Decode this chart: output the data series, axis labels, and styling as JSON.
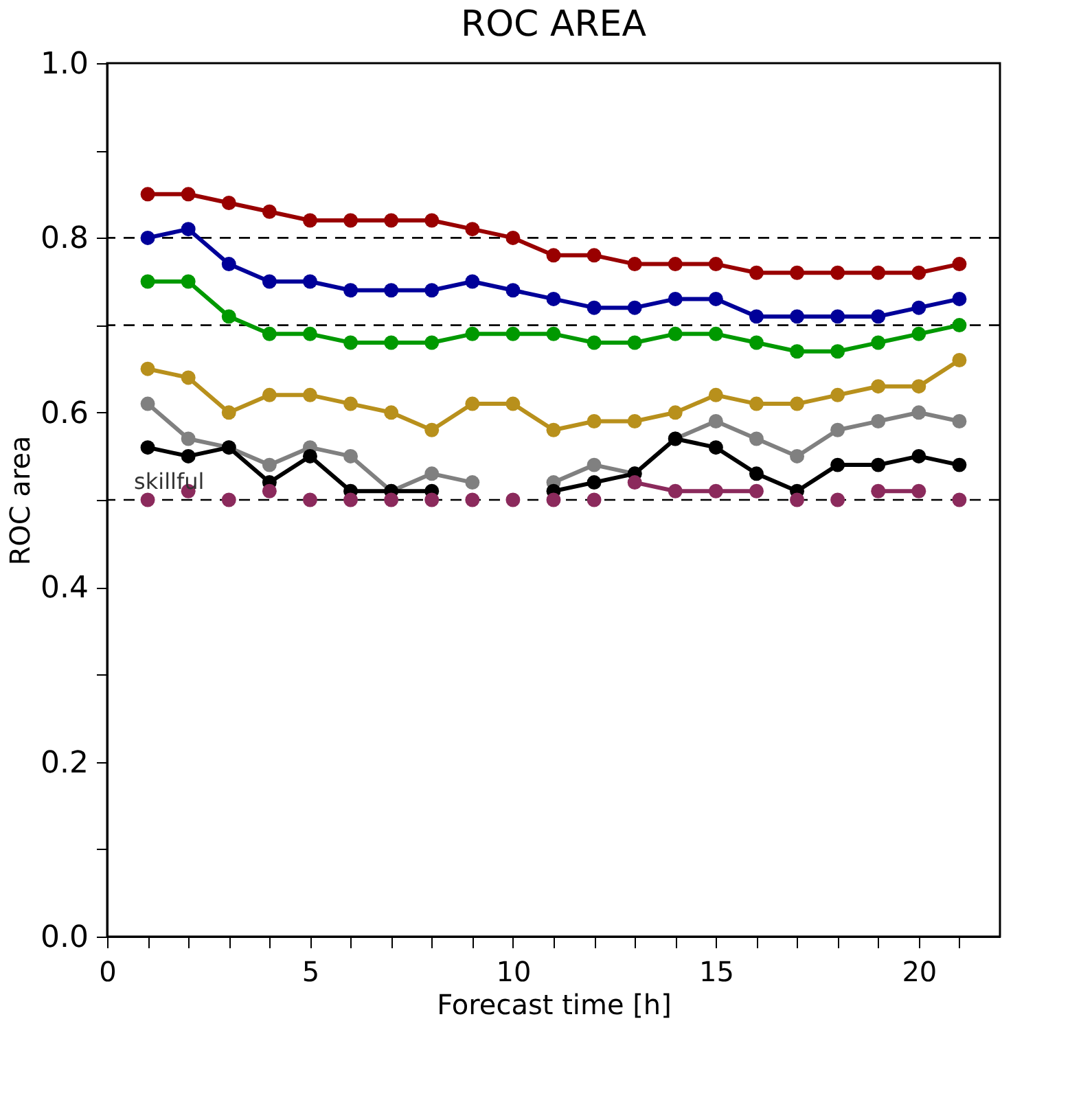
{
  "chart_data": {
    "type": "line",
    "title": "ROC AREA",
    "xlabel": "Forecast time [h]",
    "ylabel": "ROC area",
    "x": [
      1,
      2,
      3,
      4,
      5,
      6,
      7,
      8,
      9,
      10,
      11,
      12,
      13,
      14,
      15,
      16,
      17,
      18,
      19,
      20,
      21
    ],
    "series": [
      {
        "color": "#990000",
        "values": [
          0.85,
          0.85,
          0.84,
          0.83,
          0.82,
          0.82,
          0.82,
          0.82,
          0.81,
          0.8,
          0.78,
          0.78,
          0.77,
          0.77,
          0.77,
          0.76,
          0.76,
          0.76,
          0.76,
          0.76,
          0.77
        ]
      },
      {
        "color": "#000099",
        "values": [
          0.8,
          0.81,
          0.77,
          0.75,
          0.75,
          0.74,
          0.74,
          0.74,
          0.75,
          0.74,
          0.73,
          0.72,
          0.72,
          0.73,
          0.73,
          0.71,
          0.71,
          0.71,
          0.71,
          0.72,
          0.73
        ]
      },
      {
        "color": "#009900",
        "values": [
          0.75,
          0.75,
          0.71,
          0.69,
          0.69,
          0.68,
          0.68,
          0.68,
          0.69,
          0.69,
          0.69,
          0.68,
          0.68,
          0.69,
          0.69,
          0.68,
          0.67,
          0.67,
          0.68,
          0.69,
          0.7
        ]
      },
      {
        "color": "#b8901c",
        "values": [
          0.65,
          0.64,
          0.6,
          0.62,
          0.62,
          0.61,
          0.6,
          0.58,
          0.61,
          0.61,
          0.58,
          0.59,
          0.59,
          0.6,
          0.62,
          0.61,
          0.61,
          0.62,
          0.63,
          0.63,
          0.66
        ]
      },
      {
        "color": "#808080",
        "values": [
          0.61,
          0.57,
          0.56,
          0.54,
          0.56,
          0.55,
          0.51,
          0.53,
          0.52,
          null,
          0.52,
          0.54,
          0.53,
          0.57,
          0.59,
          0.57,
          0.55,
          0.58,
          0.59,
          0.6,
          0.59
        ]
      },
      {
        "color": "#000000",
        "values": [
          0.56,
          0.55,
          0.56,
          0.52,
          0.55,
          0.51,
          0.51,
          0.51,
          null,
          null,
          0.51,
          0.52,
          0.53,
          0.57,
          0.56,
          0.53,
          0.51,
          0.54,
          0.54,
          0.55,
          0.54
        ]
      },
      {
        "color": "#8b2a5c",
        "values": [
          null,
          null,
          null,
          null,
          null,
          null,
          null,
          null,
          null,
          null,
          null,
          null,
          0.52,
          0.51,
          0.51,
          0.51,
          null,
          null,
          0.51,
          0.51,
          null
        ]
      },
      {
        "type": "scatter",
        "color": "#8b2a5c",
        "values": [
          0.5,
          0.51,
          0.5,
          0.51,
          0.5,
          0.5,
          0.5,
          0.5,
          0.5,
          0.5,
          0.5,
          0.5,
          null,
          null,
          null,
          null,
          0.5,
          0.5,
          null,
          null,
          0.5
        ]
      }
    ],
    "xlim": [
      0,
      22
    ],
    "xticks": [
      0,
      {
        "value": 1,
        "label": null
      },
      {
        "value": 2,
        "label": null
      },
      {
        "value": 3,
        "label": null
      },
      {
        "value": 4,
        "label": null
      },
      5,
      {
        "value": 6,
        "label": null
      },
      {
        "value": 7,
        "label": null
      },
      {
        "value": 8,
        "label": null
      },
      {
        "value": 9,
        "label": null
      },
      10,
      {
        "value": 11,
        "label": null
      },
      {
        "value": 12,
        "label": null
      },
      {
        "value": 13,
        "label": null
      },
      {
        "value": 14,
        "label": null
      },
      15,
      {
        "value": 16,
        "label": null
      },
      {
        "value": 17,
        "label": null
      },
      {
        "value": 18,
        "label": null
      },
      {
        "value": 19,
        "label": null
      },
      20,
      {
        "value": 21,
        "label": null
      }
    ],
    "ylim": [
      0,
      1
    ],
    "yticks": [
      {
        "value": 0,
        "label": "0.0"
      },
      {
        "value": 0.1,
        "label": null
      },
      {
        "value": 0.2,
        "label": "0.2"
      },
      {
        "value": 0.3,
        "label": null
      },
      {
        "value": 0.4,
        "label": "0.4"
      },
      {
        "value": 0.5,
        "label": null
      },
      {
        "value": 0.6,
        "label": "0.6"
      },
      {
        "value": 0.7,
        "label": null
      },
      {
        "value": 0.8,
        "label": "0.8"
      },
      {
        "value": 0.9,
        "label": null
      },
      {
        "value": 1,
        "label": "1.0"
      }
    ],
    "ref_lines": [
      {
        "axis": "y",
        "value": 0.5,
        "color": "#000000",
        "line_style": "dashed"
      },
      {
        "axis": "y",
        "value": 0.7,
        "color": "#000000",
        "line_style": "dashed"
      },
      {
        "axis": "y",
        "value": 0.8,
        "color": "#000000",
        "line_style": "dashed"
      }
    ],
    "annotations": [
      {
        "text": "skillful",
        "x": 1,
        "y": 0.5
      }
    ],
    "marker": "circle",
    "grid": false
  }
}
